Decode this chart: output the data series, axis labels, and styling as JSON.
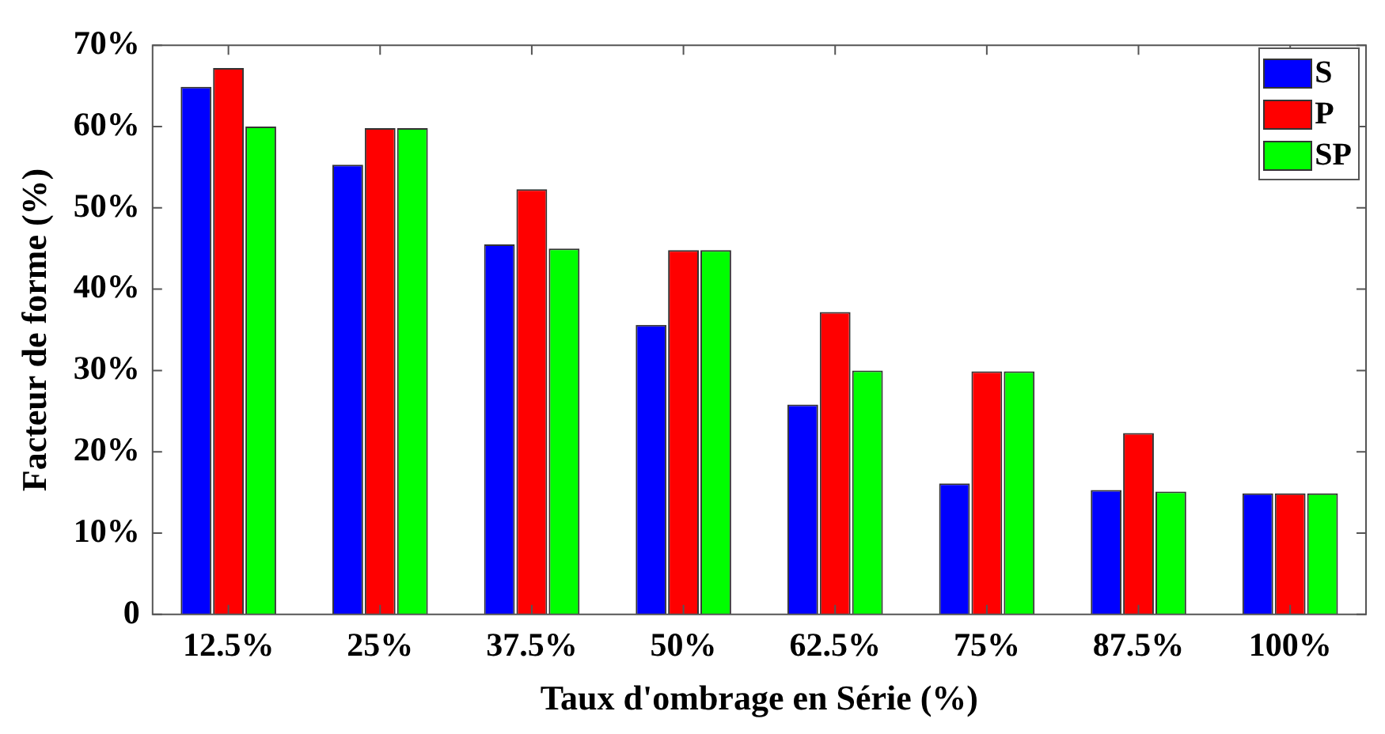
{
  "chart_data": {
    "type": "bar",
    "xlabel": "Taux d'ombrage en Série (%)",
    "ylabel": "Facteur de forme (%)",
    "categories": [
      "12.5%",
      "25%",
      "37.5%",
      "50%",
      "62.5%",
      "75%",
      "87.5%",
      "100%"
    ],
    "series": [
      {
        "name": "S",
        "color": "#0000ff",
        "values": [
          64.9,
          55.3,
          45.5,
          35.6,
          25.8,
          16.1,
          15.3,
          14.9
        ]
      },
      {
        "name": "P",
        "color": "#ff0000",
        "values": [
          67.2,
          59.8,
          52.3,
          44.8,
          37.2,
          29.9,
          22.3,
          14.9
        ]
      },
      {
        "name": "SP",
        "color": "#00ff00",
        "values": [
          60.0,
          59.8,
          45.0,
          44.8,
          30.0,
          29.9,
          15.1,
          14.9
        ]
      }
    ],
    "ylim": [
      0,
      70
    ],
    "yticks": [
      {
        "value": 0,
        "label": "0"
      },
      {
        "value": 10,
        "label": "10%"
      },
      {
        "value": 20,
        "label": "20%"
      },
      {
        "value": 30,
        "label": "30%"
      },
      {
        "value": 40,
        "label": "40%"
      },
      {
        "value": 50,
        "label": "50%"
      },
      {
        "value": 60,
        "label": "60%"
      },
      {
        "value": 70,
        "label": "70%"
      }
    ],
    "grid": false,
    "legend": "top right"
  }
}
